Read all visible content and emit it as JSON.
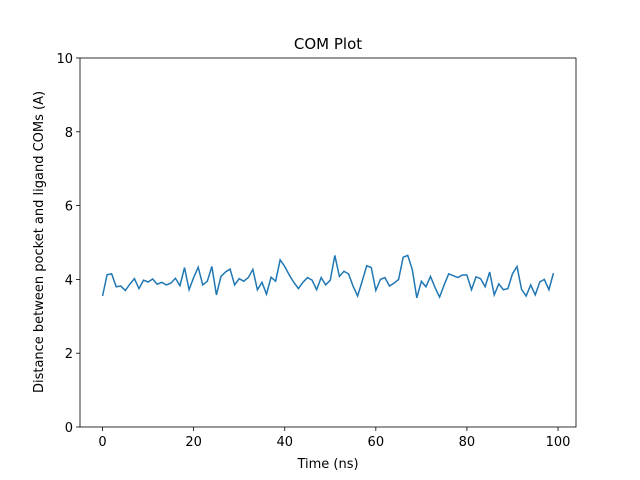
{
  "chart_data": {
    "type": "line",
    "title": "COM Plot",
    "xlabel": "Time (ns)",
    "ylabel": "Distance between pocket and ligand COMs (A)",
    "x": [
      0,
      1,
      2,
      3,
      4,
      5,
      6,
      7,
      8,
      9,
      10,
      11,
      12,
      13,
      14,
      15,
      16,
      17,
      18,
      19,
      20,
      21,
      22,
      23,
      24,
      25,
      26,
      27,
      28,
      29,
      30,
      31,
      32,
      33,
      34,
      35,
      36,
      37,
      38,
      39,
      40,
      41,
      42,
      43,
      44,
      45,
      46,
      47,
      48,
      49,
      50,
      51,
      52,
      53,
      54,
      55,
      56,
      57,
      58,
      59,
      60,
      61,
      62,
      63,
      64,
      65,
      66,
      67,
      68,
      69,
      70,
      71,
      72,
      73,
      74,
      75,
      76,
      77,
      78,
      79,
      80,
      81,
      82,
      83,
      84,
      85,
      86,
      87,
      88,
      89,
      90,
      91,
      92,
      93,
      94,
      95,
      96,
      97,
      98,
      99
    ],
    "series": [
      {
        "color": "#1f77b4",
        "values": [
          3.55,
          4.13,
          4.15,
          3.8,
          3.82,
          3.7,
          3.87,
          4.02,
          3.75,
          3.98,
          3.93,
          4.01,
          3.87,
          3.92,
          3.85,
          3.9,
          4.03,
          3.83,
          4.32,
          3.72,
          4.05,
          4.33,
          3.85,
          3.95,
          4.35,
          3.58,
          4.08,
          4.2,
          4.28,
          3.85,
          4.02,
          3.95,
          4.05,
          4.27,
          3.72,
          3.92,
          3.6,
          4.06,
          3.95,
          4.53,
          4.35,
          4.12,
          3.92,
          3.75,
          3.92,
          4.05,
          3.98,
          3.72,
          4.05,
          3.85,
          3.98,
          4.65,
          4.08,
          4.22,
          4.15,
          3.82,
          3.55,
          3.95,
          4.37,
          4.32,
          3.7,
          4.0,
          4.05,
          3.82,
          3.9,
          4.0,
          4.6,
          4.65,
          4.27,
          3.5,
          3.95,
          3.8,
          4.08,
          3.78,
          3.52,
          3.85,
          4.15,
          4.1,
          4.05,
          4.12,
          4.12,
          3.72,
          4.07,
          4.02,
          3.8,
          4.2,
          3.58,
          3.88,
          3.72,
          3.75,
          4.15,
          4.35,
          3.73,
          3.55,
          3.85,
          3.58,
          3.93,
          4.0,
          3.72,
          4.17
        ]
      }
    ],
    "xlim": [
      -4.95,
      103.95
    ],
    "xticks": [
      0,
      20,
      40,
      60,
      80,
      100
    ],
    "ylim": [
      0,
      10
    ],
    "yticks": [
      0,
      2,
      4,
      6,
      8,
      10
    ]
  }
}
